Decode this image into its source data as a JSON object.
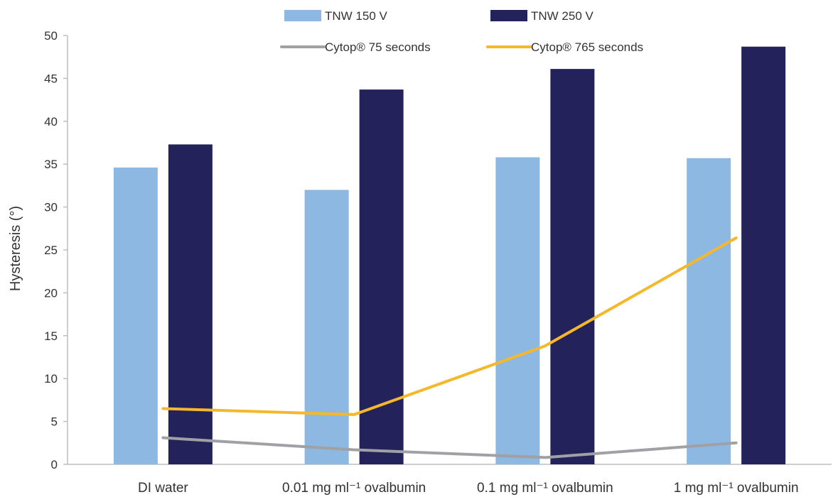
{
  "chart_data": {
    "type": "bar",
    "title": "",
    "xlabel": "",
    "ylabel": "Hysteresis (°)",
    "ylim": [
      0,
      50
    ],
    "yticks": [
      0,
      5,
      10,
      15,
      20,
      25,
      30,
      35,
      40,
      45,
      50
    ],
    "categories": [
      "DI water",
      "0.01 mg ml⁻¹ ovalbumin",
      "0.1 mg ml⁻¹ ovalbumin",
      "1 mg ml⁻¹ ovalbumin"
    ],
    "series": [
      {
        "name": "TNW 150 V",
        "kind": "bar",
        "color": "#8db8e2",
        "values": [
          34.6,
          32.0,
          35.8,
          35.7
        ]
      },
      {
        "name": "TNW 250 V",
        "kind": "bar",
        "color": "#24225a",
        "values": [
          37.3,
          43.7,
          46.1,
          48.7
        ]
      },
      {
        "name": "Cytop® 75 seconds",
        "kind": "line",
        "color": "#a0a1a5",
        "values": [
          3.1,
          1.7,
          0.8,
          2.5
        ]
      },
      {
        "name": "Cytop® 765 seconds",
        "kind": "line",
        "color": "#f5b82a",
        "values": [
          6.5,
          5.8,
          13.8,
          26.4
        ]
      }
    ],
    "grid": false,
    "legend": "top"
  }
}
